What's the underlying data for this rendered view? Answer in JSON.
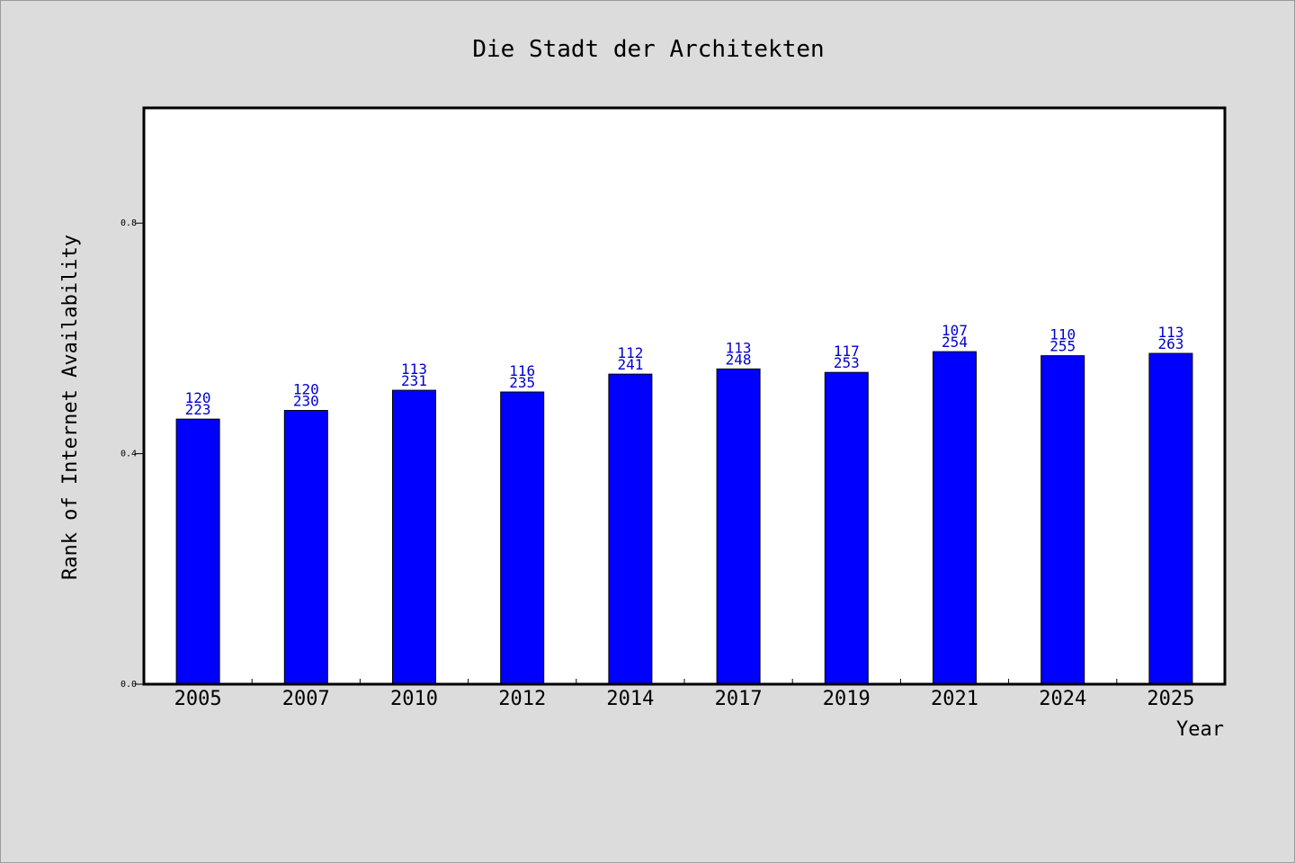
{
  "chart_data": {
    "type": "bar",
    "title": "Die Stadt der Architekten",
    "xlabel": "Year",
    "ylabel": "Rank of Internet Availability",
    "categories": [
      "2005",
      "2007",
      "2010",
      "2012",
      "2014",
      "2017",
      "2019",
      "2021",
      "2024",
      "2025"
    ],
    "values": [
      0.46,
      0.475,
      0.51,
      0.507,
      0.538,
      0.547,
      0.541,
      0.577,
      0.57,
      0.574
    ],
    "bar_labels": [
      [
        "120",
        "223"
      ],
      [
        "120",
        "230"
      ],
      [
        "113",
        "231"
      ],
      [
        "116",
        "235"
      ],
      [
        "112",
        "241"
      ],
      [
        "113",
        "248"
      ],
      [
        "117",
        "253"
      ],
      [
        "107",
        "254"
      ],
      [
        "110",
        "255"
      ],
      [
        "113",
        "263"
      ]
    ],
    "yticks": [
      "0.0",
      "0.4",
      "0.8"
    ],
    "ytick_values": [
      0,
      0.4,
      0.8
    ],
    "ylim": [
      0,
      1.0
    ],
    "grid": false,
    "legend": "none",
    "colors": {
      "bar": "#0000ff",
      "bar_edge": "#000000",
      "label": "#0000cc",
      "plot_bg": "#ffffff",
      "figure_bg": "#dcdcdc"
    }
  }
}
